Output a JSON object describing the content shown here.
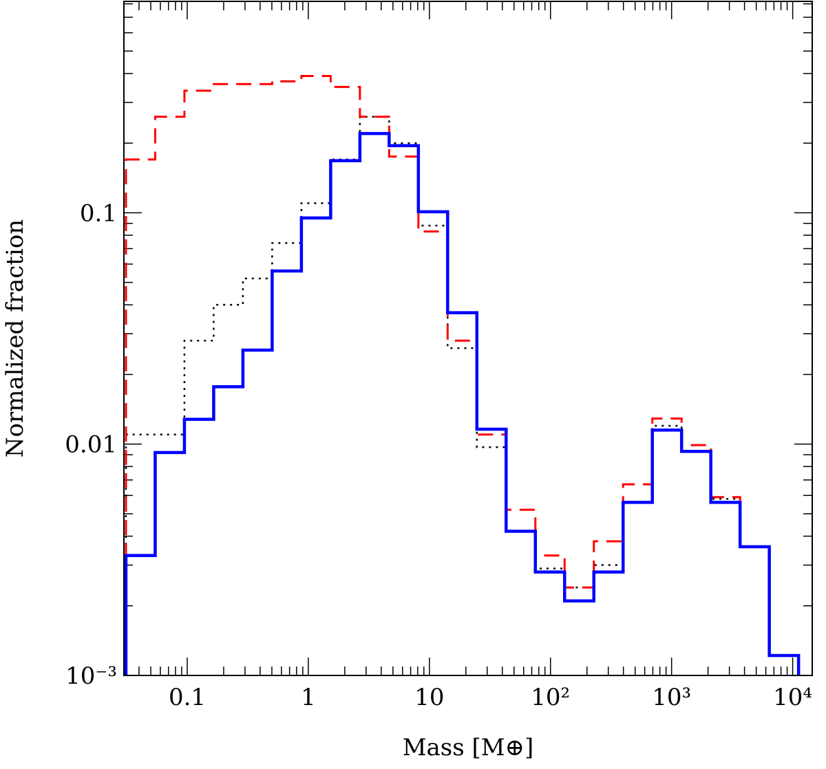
{
  "chart_data": {
    "type": "line",
    "style": "step histogram",
    "xlabel": "Mass [M⊕]",
    "ylabel": "Normalized fraction",
    "xscale": "log",
    "yscale": "log",
    "xlim": [
      0.03,
      14500
    ],
    "ylim": [
      0.001,
      0.82
    ],
    "x_tick_labels": [
      {
        "value": 0.1,
        "label": "0.1"
      },
      {
        "value": 1,
        "label": "1"
      },
      {
        "value": 10,
        "label": "10"
      },
      {
        "value": 100,
        "label": "10²"
      },
      {
        "value": 1000,
        "label": "10³"
      },
      {
        "value": 10000,
        "label": "10⁴"
      }
    ],
    "y_tick_labels": [
      {
        "value": 0.1,
        "label": "0.1"
      },
      {
        "value": 0.01,
        "label": "0.01"
      },
      {
        "value": 0.001,
        "label": "10⁻³"
      }
    ],
    "bin_first_edge_log10": -1.506,
    "bin_width_dex": 0.2415,
    "series": [
      {
        "name": "blue-solid",
        "color": "#0000ff",
        "dash": "solid",
        "values": [
          0.0033,
          0.0092,
          0.0128,
          0.0177,
          0.0255,
          0.056,
          0.095,
          0.168,
          0.22,
          0.195,
          0.101,
          0.037,
          0.0116,
          0.0042,
          0.0028,
          0.0021,
          0.0028,
          0.0056,
          0.0115,
          0.0093,
          0.0056,
          0.0036,
          0.00122
        ]
      },
      {
        "name": "red-dashed",
        "color": "#ff0000",
        "dash": "dashed",
        "values": [
          0.17,
          0.26,
          0.337,
          0.36,
          0.36,
          0.37,
          0.39,
          0.35,
          0.26,
          0.175,
          0.083,
          0.028,
          0.011,
          0.0052,
          0.0033,
          0.0024,
          0.0038,
          0.0067,
          0.0129,
          0.0099,
          0.0059,
          0.0036,
          0.00122
        ]
      },
      {
        "name": "black-dotted",
        "color": "#000000",
        "dash": "dotted",
        "values": [
          0.011,
          0.011,
          0.028,
          0.04,
          0.052,
          0.074,
          0.11,
          0.17,
          0.26,
          0.2,
          0.088,
          0.026,
          0.0097,
          0.0042,
          0.0029,
          0.0024,
          0.003,
          0.0056,
          0.012,
          0.0093,
          0.0058,
          0.0036,
          0.00122
        ]
      }
    ]
  }
}
